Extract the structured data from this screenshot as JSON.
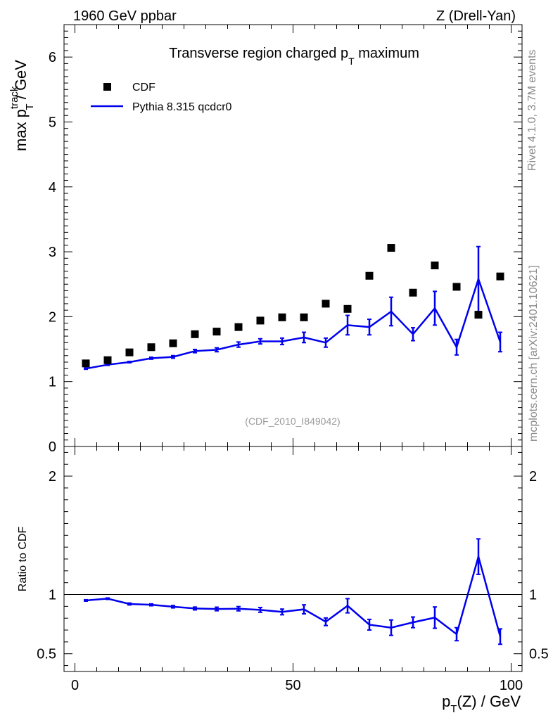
{
  "header": {
    "left": "1960 GeV ppbar",
    "right": "Z (Drell-Yan)"
  },
  "side": {
    "rivet": "Rivet 4.1.0,  3.7M events",
    "mcplots": "mcplots.cern.ch [arXiv:2401.10621]"
  },
  "colors": {
    "mc": "#0000ee",
    "data": "#000000"
  },
  "chart_data": {
    "type": "scatter",
    "title": "Transverse region charged p_T maximum",
    "title_main": "Transverse region charged p",
    "title_sub": "T",
    "title_tail": " maximum",
    "watermark": "(CDF_2010_I849042)",
    "xlabel_main": "p",
    "xlabel_sub": "T",
    "xlabel_tail": "(Z) / GeV",
    "ylabel_main": "max p",
    "ylabel_sup": "track",
    "ylabel_sub": "T",
    "ylabel_tail": " / GeV",
    "ratio_ylabel": "Ratio to CDF",
    "xlim": [
      -2.5,
      102.5
    ],
    "ylim": [
      0,
      6.5
    ],
    "ratio_ylim": [
      0.35,
      2.25
    ],
    "x_ticks": [
      "0",
      "50",
      "100"
    ],
    "x_tick_values": [
      0,
      50,
      100
    ],
    "y_ticks": [
      "0",
      "1",
      "2",
      "3",
      "4",
      "5",
      "6"
    ],
    "y_tick_values": [
      0,
      1,
      2,
      3,
      4,
      5,
      6
    ],
    "ratio_ticks": [
      "0.5",
      "1",
      "2"
    ],
    "ratio_tick_values": [
      0.5,
      1,
      2
    ],
    "legend": [
      "CDF",
      "Pythia 8.315 qcdcr0"
    ],
    "x": [
      2.5,
      7.5,
      12.5,
      17.5,
      22.5,
      27.5,
      32.5,
      37.5,
      42.5,
      47.5,
      52.5,
      57.5,
      62.5,
      67.5,
      72.5,
      77.5,
      82.5,
      87.5,
      92.5,
      97.5
    ],
    "series": [
      {
        "name": "CDF",
        "values": [
          1.28,
          1.33,
          1.45,
          1.53,
          1.59,
          1.73,
          1.77,
          1.84,
          1.94,
          1.99,
          1.99,
          2.2,
          2.12,
          2.63,
          3.06,
          2.37,
          2.79,
          2.46,
          2.03,
          2.62
        ]
      },
      {
        "name": "Pythia 8.315 qcdcr0",
        "values": [
          1.2,
          1.26,
          1.3,
          1.36,
          1.38,
          1.47,
          1.49,
          1.57,
          1.62,
          1.62,
          1.68,
          1.6,
          1.87,
          1.84,
          2.08,
          1.73,
          2.13,
          1.53,
          2.58,
          1.61
        ],
        "errors": [
          0.01,
          0.01,
          0.01,
          0.015,
          0.02,
          0.025,
          0.03,
          0.04,
          0.04,
          0.05,
          0.08,
          0.07,
          0.15,
          0.12,
          0.22,
          0.1,
          0.26,
          0.12,
          0.5,
          0.15
        ]
      }
    ],
    "ratio": {
      "values": [
        0.95,
        0.965,
        0.92,
        0.913,
        0.897,
        0.882,
        0.878,
        0.88,
        0.87,
        0.853,
        0.875,
        0.77,
        0.905,
        0.745,
        0.72,
        0.765,
        0.805,
        0.665,
        1.32,
        0.645
      ],
      "errors": [
        0.006,
        0.006,
        0.008,
        0.008,
        0.01,
        0.012,
        0.015,
        0.018,
        0.02,
        0.024,
        0.038,
        0.032,
        0.06,
        0.045,
        0.065,
        0.045,
        0.09,
        0.055,
        0.15,
        0.065
      ]
    }
  }
}
